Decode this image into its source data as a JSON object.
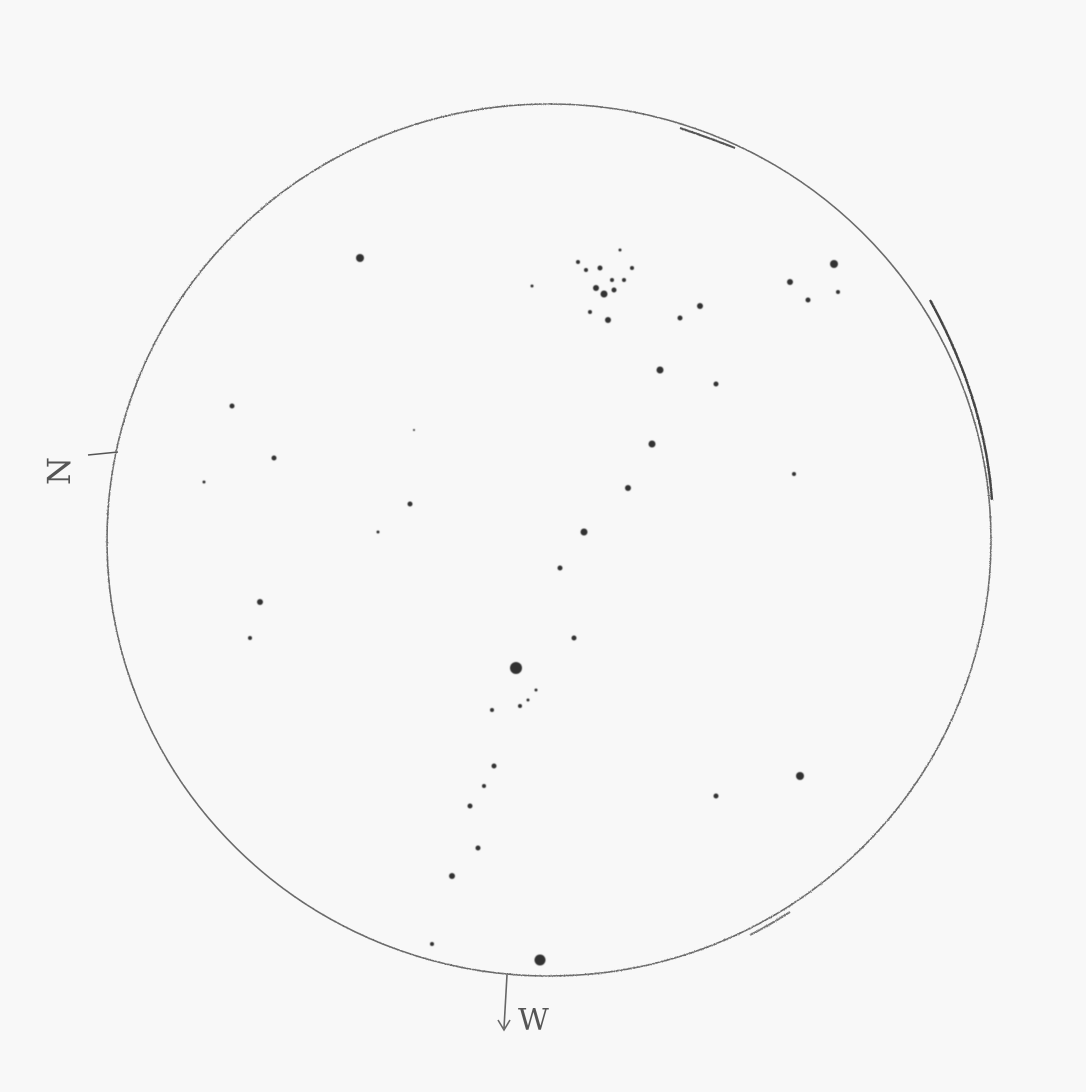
{
  "labels": {
    "north": "N",
    "west": "W"
  },
  "colors": {
    "paper": "#fbfbfb",
    "pencil": "#4a4a4a",
    "star": "#333333"
  }
}
